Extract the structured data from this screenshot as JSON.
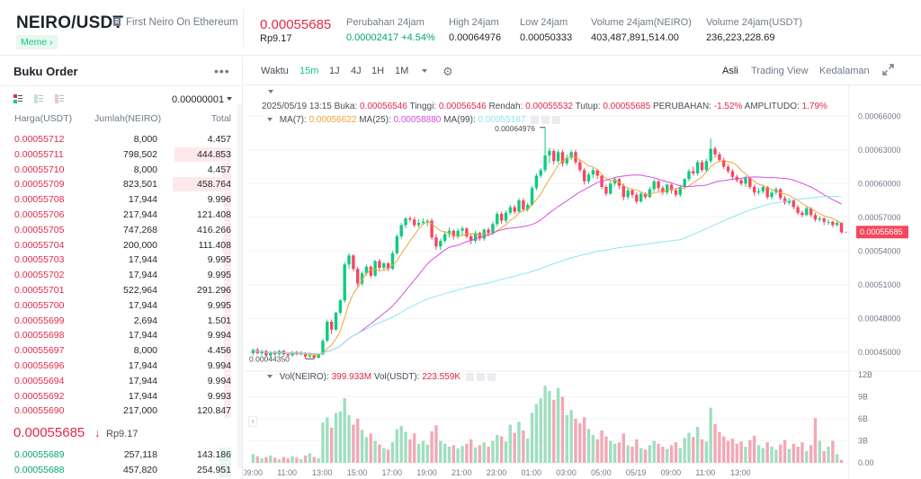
{
  "header": {
    "pair": "NEIRO/USDT",
    "subtitle": "First Neiro On Ethereum",
    "tag": "Meme ›",
    "last_price": "0.00055685",
    "last_price_fiat": "Rp9.17",
    "stats": [
      {
        "label": "Perubahan 24jam",
        "value": "0.00002417 +4.54%",
        "color": "#03a66d"
      },
      {
        "label": "High 24jam",
        "value": "0.00064976",
        "color": "#1e2329"
      },
      {
        "label": "Low 24jam",
        "value": "0.00050333",
        "color": "#1e2329"
      },
      {
        "label": "Volume 24jam(NEIRO)",
        "value": "403,487,891,514.00",
        "color": "#1e2329"
      },
      {
        "label": "Volume 24jam(USDT)",
        "value": "236,223,228.69",
        "color": "#1e2329"
      }
    ]
  },
  "orderbook": {
    "title": "Buku Order",
    "more_icon": "•••",
    "step": "0.00000001",
    "columns": [
      "Harga(USDT)",
      "Jumlah(NEIRO)",
      "Total"
    ],
    "asks": [
      {
        "price": "0.00055712",
        "qty": "8,000",
        "total": "4.457",
        "depth": 0.0
      },
      {
        "price": "0.00055711",
        "qty": "798,502",
        "total": "444.853",
        "depth": 0.25
      },
      {
        "price": "0.00055710",
        "qty": "8,000",
        "total": "4.457",
        "depth": 0.04
      },
      {
        "price": "0.00055709",
        "qty": "823,501",
        "total": "458.764",
        "depth": 0.26
      },
      {
        "price": "0.00055708",
        "qty": "17,944",
        "total": "9.996",
        "depth": 0.03
      },
      {
        "price": "0.00055706",
        "qty": "217,944",
        "total": "121.408",
        "depth": 0.03
      },
      {
        "price": "0.00055705",
        "qty": "747,268",
        "total": "416.266",
        "depth": 0.03
      },
      {
        "price": "0.00055704",
        "qty": "200,000",
        "total": "111.408",
        "depth": 0.04
      },
      {
        "price": "0.00055703",
        "qty": "17,944",
        "total": "9.995",
        "depth": 0.03
      },
      {
        "price": "0.00055702",
        "qty": "17,944",
        "total": "9.995",
        "depth": 0.03
      },
      {
        "price": "0.00055701",
        "qty": "522,964",
        "total": "291.296",
        "depth": 0.03
      },
      {
        "price": "0.00055700",
        "qty": "17,944",
        "total": "9.995",
        "depth": 0.03
      },
      {
        "price": "0.00055699",
        "qty": "2,694",
        "total": "1.501",
        "depth": 0.03
      },
      {
        "price": "0.00055698",
        "qty": "17,944",
        "total": "9.994",
        "depth": 0.03
      },
      {
        "price": "0.00055697",
        "qty": "8,000",
        "total": "4.456",
        "depth": 0.03
      },
      {
        "price": "0.00055696",
        "qty": "17,944",
        "total": "9.994",
        "depth": 0.03
      },
      {
        "price": "0.00055694",
        "qty": "17,944",
        "total": "9.994",
        "depth": 0.03
      },
      {
        "price": "0.00055692",
        "qty": "17,944",
        "total": "9.993",
        "depth": 0.03
      },
      {
        "price": "0.00055690",
        "qty": "217,000",
        "total": "120.847",
        "depth": 0.03
      }
    ],
    "mid_price": "0.00055685",
    "mid_arrow": "↓",
    "mid_fiat": "Rp9.17",
    "bids": [
      {
        "price": "0.00055689",
        "qty": "257,118",
        "total": "143.186",
        "depth": 0.05
      },
      {
        "price": "0.00055688",
        "qty": "457,820",
        "total": "254.951",
        "depth": 0.05
      }
    ]
  },
  "chart": {
    "toolbar": {
      "timeframes": [
        "Waktu",
        "15m",
        "1J",
        "4J",
        "1H",
        "1M"
      ],
      "active_timeframe": "15m",
      "views": [
        "Asli",
        "Trading View",
        "Kedalaman"
      ],
      "active_view": "Asli"
    },
    "ohlc": {
      "date": "2025/05/19 13:15",
      "open_label": "Buka:",
      "open": "0.00056546",
      "high_label": "Tinggi:",
      "high": "0.00056546",
      "low_label": "Rendah:",
      "low": "0.00055532",
      "close_label": "Tutup:",
      "close": "0.00055685",
      "change_label": "PERUBAHAN:",
      "change": "-1.52%",
      "amp_label": "AMPLITUDO:",
      "amp": "1.79%"
    },
    "ma": [
      {
        "label": "MA(7):",
        "value": "0.00056622",
        "color": "#f0a43a"
      },
      {
        "label": "MA(25):",
        "value": "0.00058880",
        "color": "#d84fdc"
      },
      {
        "label": "MA(99):",
        "value": "0.00055187",
        "color": "#8ee6f0"
      }
    ],
    "vol_legend": [
      {
        "label": "Vol(NEIRO):",
        "value": "399.933M",
        "color": "#e0294a"
      },
      {
        "label": "Vol(USDT):",
        "value": "223.559K",
        "color": "#e0294a"
      }
    ],
    "price_ticks": [
      "0.00066000",
      "0.00063000",
      "0.00060000",
      "0.00057000",
      "0.00054000",
      "0.00051000",
      "0.00048000",
      "0.00045000"
    ],
    "volume_ticks": [
      "12B",
      "9B",
      "6B",
      "3B",
      "0.00"
    ],
    "time_ticks": [
      "09:00",
      "11:00",
      "13:00",
      "15:00",
      "17:00",
      "19:00",
      "21:00",
      "23:00",
      "01:00",
      "03:00",
      "05:00",
      "05/19",
      "09:00",
      "11:00",
      "13:00"
    ],
    "high_marker": "0.00064976",
    "low_marker": "0.00044350",
    "current_price_label": "0.00055685"
  },
  "chart_data": {
    "type": "candlestick",
    "interval": "15m",
    "price_range": [
      0.000433,
      0.000673
    ],
    "volume_range": [
      0,
      12000000000
    ],
    "candles": [
      [
        0.000449,
        0.000452,
        0.000453,
        0.000447,
        1.2
      ],
      [
        0.000452,
        0.000449,
        0.000454,
        0.000448,
        0.9
      ],
      [
        0.000449,
        0.000451,
        0.000452,
        0.000447,
        0.6
      ],
      [
        0.000451,
        0.000447,
        0.000452,
        0.000446,
        0.8
      ],
      [
        0.000447,
        0.00045,
        0.000451,
        0.000446,
        1.0
      ],
      [
        0.00045,
        0.000448,
        0.000451,
        0.000447,
        0.7
      ],
      [
        0.000448,
        0.000451,
        0.000452,
        0.000447,
        0.5
      ],
      [
        0.000451,
        0.000448,
        0.000452,
        0.000447,
        0.8
      ],
      [
        0.000448,
        0.000447,
        0.000449,
        0.000446,
        0.6
      ],
      [
        0.000447,
        0.00045,
        0.000451,
        0.000446,
        0.9
      ],
      [
        0.00045,
        0.000448,
        0.000451,
        0.000447,
        0.7
      ],
      [
        0.000448,
        0.000449,
        0.000451,
        0.000447,
        0.5
      ],
      [
        0.000449,
        0.000446,
        0.00045,
        0.000444,
        1.0
      ],
      [
        0.000446,
        0.000447,
        0.000449,
        0.000445,
        1.3
      ],
      [
        0.000447,
        0.000445,
        0.000448,
        0.000444,
        0.8
      ],
      [
        0.000445,
        0.000448,
        0.000449,
        0.000444,
        0.6
      ],
      [
        0.000448,
        0.00046,
        0.000462,
        0.000447,
        5.5
      ],
      [
        0.00046,
        0.000477,
        0.000479,
        0.000459,
        6.2
      ],
      [
        0.000477,
        0.00047,
        0.000479,
        0.000466,
        4.8
      ],
      [
        0.00047,
        0.000485,
        0.000486,
        0.000469,
        6.8
      ],
      [
        0.000485,
        0.000496,
        0.000497,
        0.000483,
        7.0
      ],
      [
        0.000496,
        0.000528,
        0.00053,
        0.000494,
        8.8
      ],
      [
        0.000528,
        0.000536,
        0.000538,
        0.000524,
        6.5
      ],
      [
        0.000536,
        0.000524,
        0.000537,
        0.000522,
        5.2
      ],
      [
        0.000524,
        0.000511,
        0.000526,
        0.000508,
        6.0
      ],
      [
        0.000511,
        0.00052,
        0.000522,
        0.000509,
        4.5
      ],
      [
        0.00052,
        0.000526,
        0.000528,
        0.000518,
        3.5
      ],
      [
        0.000526,
        0.000518,
        0.000527,
        0.000516,
        4.0
      ],
      [
        0.000518,
        0.000531,
        0.000532,
        0.000517,
        3.0
      ],
      [
        0.000531,
        0.000525,
        0.000533,
        0.000523,
        2.5
      ],
      [
        0.000525,
        0.000529,
        0.00053,
        0.000523,
        2.0
      ],
      [
        0.000529,
        0.000524,
        0.00053,
        0.000522,
        1.8
      ],
      [
        0.000524,
        0.000538,
        0.00054,
        0.000523,
        2.8
      ],
      [
        0.000538,
        0.000553,
        0.000555,
        0.000537,
        4.6
      ],
      [
        0.000553,
        0.000563,
        0.000565,
        0.000551,
        5.0
      ],
      [
        0.000563,
        0.000569,
        0.00057,
        0.00056,
        4.2
      ],
      [
        0.000569,
        0.000568,
        0.000571,
        0.000566,
        3.2
      ],
      [
        0.000568,
        0.000563,
        0.00057,
        0.000561,
        4.0
      ],
      [
        0.000563,
        0.000565,
        0.000568,
        0.000561,
        2.6
      ],
      [
        0.000565,
        0.000566,
        0.000569,
        0.000563,
        3.0
      ],
      [
        0.000566,
        0.000567,
        0.000568,
        0.000562,
        2.5
      ],
      [
        0.000567,
        0.000552,
        0.000569,
        0.00055,
        4.3
      ],
      [
        0.000552,
        0.000544,
        0.000555,
        0.000541,
        5.1
      ],
      [
        0.000544,
        0.000549,
        0.000551,
        0.000541,
        3.0
      ],
      [
        0.000549,
        0.000555,
        0.000558,
        0.000547,
        2.6
      ],
      [
        0.000555,
        0.000558,
        0.000561,
        0.000552,
        2.2
      ],
      [
        0.000558,
        0.000553,
        0.000559,
        0.00055,
        2.4
      ],
      [
        0.000553,
        0.000558,
        0.00056,
        0.000551,
        2.0
      ],
      [
        0.000558,
        0.00056,
        0.000562,
        0.000554,
        2.3
      ],
      [
        0.00056,
        0.000553,
        0.000561,
        0.000551,
        2.6
      ],
      [
        0.000553,
        0.000549,
        0.000555,
        0.000546,
        3.2
      ],
      [
        0.000549,
        0.000556,
        0.000558,
        0.000547,
        2.1
      ],
      [
        0.000556,
        0.000551,
        0.000557,
        0.000549,
        2.4
      ],
      [
        0.000551,
        0.000559,
        0.00056,
        0.000549,
        2.8
      ],
      [
        0.000559,
        0.000556,
        0.000561,
        0.000553,
        2.2
      ],
      [
        0.000556,
        0.000564,
        0.000566,
        0.000554,
        3.0
      ],
      [
        0.000564,
        0.000573,
        0.000575,
        0.000562,
        3.8
      ],
      [
        0.000573,
        0.000567,
        0.000575,
        0.000564,
        3.6
      ],
      [
        0.000567,
        0.000574,
        0.000576,
        0.000565,
        2.9
      ],
      [
        0.000574,
        0.000579,
        0.000581,
        0.000572,
        5.2
      ],
      [
        0.000579,
        0.000575,
        0.000581,
        0.000573,
        4.1
      ],
      [
        0.000575,
        0.000585,
        0.000587,
        0.000574,
        5.6
      ],
      [
        0.000585,
        0.000577,
        0.000587,
        0.000575,
        4.4
      ],
      [
        0.000577,
        0.000581,
        0.000583,
        0.000575,
        3.3
      ],
      [
        0.000581,
        0.000596,
        0.000598,
        0.00058,
        6.8
      ],
      [
        0.000596,
        0.000607,
        0.000609,
        0.000594,
        8.0
      ],
      [
        0.000607,
        0.000612,
        0.000614,
        0.000605,
        8.8
      ],
      [
        0.000612,
        0.000625,
        0.00065,
        0.00061,
        10.5
      ],
      [
        0.000625,
        0.000629,
        0.000632,
        0.000618,
        9.8
      ],
      [
        0.000629,
        0.00062,
        0.000631,
        0.000617,
        8.6
      ],
      [
        0.00062,
        0.000628,
        0.00063,
        0.000618,
        10.2
      ],
      [
        0.000628,
        0.000618,
        0.00063,
        0.000615,
        9.0
      ],
      [
        0.000618,
        0.000623,
        0.000626,
        0.000616,
        6.5
      ],
      [
        0.000623,
        0.000628,
        0.00063,
        0.000621,
        7.2
      ],
      [
        0.000628,
        0.000619,
        0.00063,
        0.000617,
        6.0
      ],
      [
        0.000619,
        0.000612,
        0.000621,
        0.00061,
        5.4
      ],
      [
        0.000612,
        0.000602,
        0.000614,
        0.000599,
        6.2
      ],
      [
        0.000602,
        0.000608,
        0.00061,
        0.0006,
        4.6
      ],
      [
        0.000608,
        0.000612,
        0.000614,
        0.000605,
        3.8
      ],
      [
        0.000612,
        0.000607,
        0.000613,
        0.000604,
        3.2
      ],
      [
        0.000607,
        0.000597,
        0.000608,
        0.000595,
        4.4
      ],
      [
        0.000597,
        0.000591,
        0.000599,
        0.000589,
        3.6
      ],
      [
        0.000591,
        0.0006,
        0.000602,
        0.00059,
        3.0
      ],
      [
        0.0006,
        0.000604,
        0.000606,
        0.000598,
        2.6
      ],
      [
        0.000604,
        0.000598,
        0.000605,
        0.000595,
        2.8
      ],
      [
        0.000598,
        0.000588,
        0.0006,
        0.000585,
        4.0
      ],
      [
        0.000588,
        0.000594,
        0.000596,
        0.000586,
        2.4
      ],
      [
        0.000594,
        0.00059,
        0.000595,
        0.000587,
        2.2
      ],
      [
        0.00059,
        0.000584,
        0.000592,
        0.000582,
        3.2
      ],
      [
        0.000584,
        0.000591,
        0.000593,
        0.000583,
        2.0
      ],
      [
        0.000591,
        0.000588,
        0.000592,
        0.000586,
        1.8
      ],
      [
        0.000588,
        0.000595,
        0.000597,
        0.000587,
        2.4
      ],
      [
        0.000595,
        0.000602,
        0.000604,
        0.000593,
        3.0
      ],
      [
        0.000602,
        0.000596,
        0.000603,
        0.000593,
        2.6
      ],
      [
        0.000596,
        0.000592,
        0.000598,
        0.00059,
        2.2
      ],
      [
        0.000592,
        0.000599,
        0.0006,
        0.00059,
        1.9
      ],
      [
        0.000599,
        0.000594,
        0.0006,
        0.000591,
        2.4
      ],
      [
        0.000594,
        0.00059,
        0.000596,
        0.000588,
        2.8
      ],
      [
        0.00059,
        0.000597,
        0.000599,
        0.000588,
        2.0
      ],
      [
        0.000597,
        0.000604,
        0.000605,
        0.000595,
        3.4
      ],
      [
        0.000604,
        0.000611,
        0.000613,
        0.000602,
        4.1
      ],
      [
        0.000611,
        0.000609,
        0.000615,
        0.000607,
        3.5
      ],
      [
        0.000609,
        0.000619,
        0.000621,
        0.000607,
        4.9
      ],
      [
        0.000619,
        0.000612,
        0.000621,
        0.00061,
        3.2
      ],
      [
        0.000612,
        0.00062,
        0.000622,
        0.00061,
        2.9
      ],
      [
        0.00062,
        0.000631,
        0.00064,
        0.000618,
        7.5
      ],
      [
        0.000631,
        0.000626,
        0.000633,
        0.000623,
        5.3
      ],
      [
        0.000626,
        0.000621,
        0.000628,
        0.000619,
        4.2
      ],
      [
        0.000621,
        0.000615,
        0.000623,
        0.000613,
        3.6
      ],
      [
        0.000615,
        0.000611,
        0.000617,
        0.000609,
        3.0
      ],
      [
        0.000611,
        0.000606,
        0.000613,
        0.000603,
        3.3
      ],
      [
        0.000606,
        0.000603,
        0.000608,
        0.000601,
        2.6
      ],
      [
        0.000603,
        0.0006,
        0.000605,
        0.000598,
        2.9
      ],
      [
        0.0006,
        0.000605,
        0.000607,
        0.000597,
        2.2
      ],
      [
        0.000605,
        0.000597,
        0.000606,
        0.000595,
        3.1
      ],
      [
        0.000597,
        0.000592,
        0.000599,
        0.000589,
        3.7
      ],
      [
        0.000592,
        0.000593,
        0.000596,
        0.00059,
        2.4
      ],
      [
        0.000593,
        0.000597,
        0.000599,
        0.000591,
        2.0
      ],
      [
        0.000597,
        0.000588,
        0.000598,
        0.000586,
        2.8
      ],
      [
        0.000588,
        0.000592,
        0.000594,
        0.000586,
        2.2
      ],
      [
        0.000592,
        0.000595,
        0.000597,
        0.00059,
        1.8
      ],
      [
        0.000595,
        0.000587,
        0.000596,
        0.000585,
        2.5
      ],
      [
        0.000587,
        0.000583,
        0.000589,
        0.000581,
        3.1
      ],
      [
        0.000583,
        0.000585,
        0.000587,
        0.000581,
        1.9
      ],
      [
        0.000585,
        0.000579,
        0.000586,
        0.000577,
        2.6
      ],
      [
        0.000579,
        0.000574,
        0.000581,
        0.000572,
        2.2
      ],
      [
        0.000574,
        0.000572,
        0.000576,
        0.00057,
        2.8
      ],
      [
        0.000572,
        0.000578,
        0.00058,
        0.000571,
        1.6
      ],
      [
        0.000578,
        0.000572,
        0.000579,
        0.00057,
        2.4
      ],
      [
        0.000572,
        0.000568,
        0.000574,
        0.000566,
        6.1
      ],
      [
        0.000568,
        0.000569,
        0.000571,
        0.000566,
        3.0
      ],
      [
        0.000569,
        0.000566,
        0.00057,
        0.000563,
        1.6
      ],
      [
        0.000566,
        0.000566,
        0.000568,
        0.000563,
        2.2
      ],
      [
        0.000566,
        0.000563,
        0.000567,
        0.000561,
        3.0
      ],
      [
        0.000563,
        0.000565,
        0.000567,
        0.000562,
        1.2
      ],
      [
        0.000565,
        0.00055685,
        0.00056546,
        0.00055532,
        0.4
      ]
    ]
  }
}
